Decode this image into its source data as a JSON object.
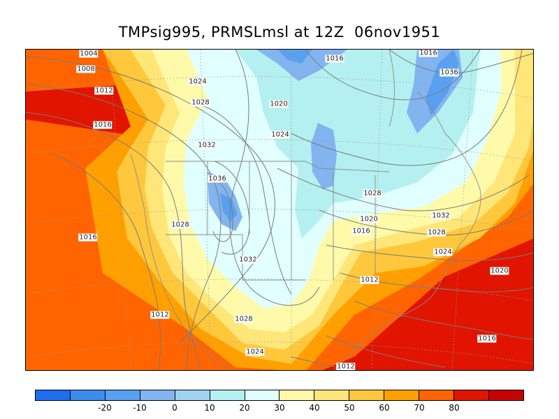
{
  "title": "TMPsig995, PRMSLmsl at 12Z  06nov1951",
  "colorbar": {
    "colors": [
      "#1e6ef0",
      "#3c8cf0",
      "#5aa0f0",
      "#82b4f0",
      "#a0d2f0",
      "#b4f0f0",
      "#e1ffff",
      "#fffaaa",
      "#ffe678",
      "#ffc83c",
      "#ffa000",
      "#ff6400",
      "#e11400",
      "#c80000"
    ],
    "tick_labels": [
      "-20",
      "-10",
      "0",
      "10",
      "20",
      "30",
      "40",
      "50",
      "60",
      "70",
      "80"
    ]
  },
  "isobar_labels": [
    "1004",
    "1008",
    "1012",
    "1016",
    "1016",
    "1024",
    "1028",
    "1020",
    "1016",
    "1036",
    "1024",
    "1032",
    "1036",
    "1028",
    "1028",
    "1032",
    "1016",
    "1020",
    "1016",
    "1028",
    "1024",
    "1032",
    "1012",
    "1012",
    "1020",
    "1028",
    "1024",
    "1016",
    "1012"
  ],
  "icons": {
    "map": "weather-map-graphic"
  }
}
